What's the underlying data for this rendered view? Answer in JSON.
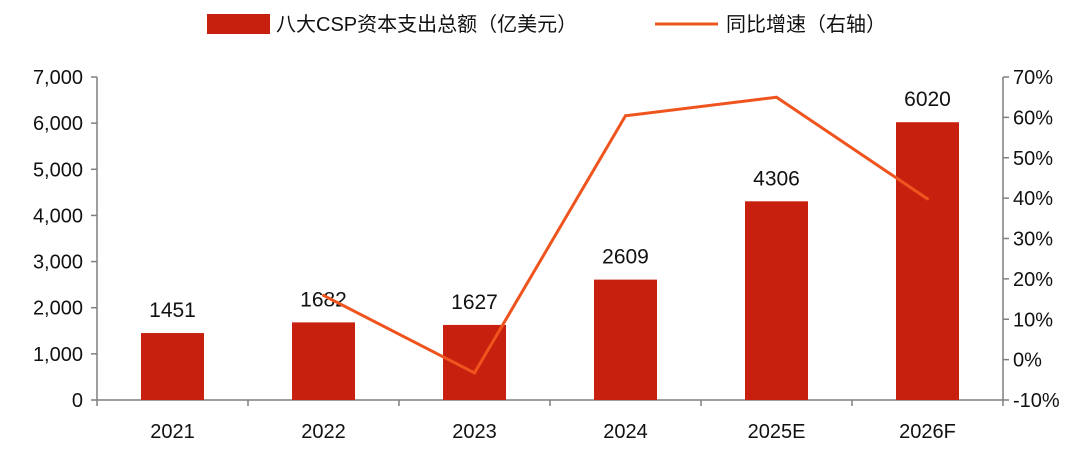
{
  "chart_data": {
    "type": "bar",
    "categories": [
      "2021",
      "2022",
      "2023",
      "2024",
      "2025E",
      "2026F"
    ],
    "series": [
      {
        "name": "八大CSP资本支出总额（亿美元）",
        "type": "bar",
        "axis": "left",
        "color": "#c8200e",
        "values": [
          1451,
          1682,
          1627,
          2609,
          4306,
          6020
        ]
      },
      {
        "name": "同比增速（右轴）",
        "type": "line",
        "axis": "right",
        "color": "#f0541e",
        "values": [
          null,
          15.9,
          -3.3,
          60.4,
          65.0,
          39.8
        ]
      }
    ],
    "data_labels": [
      "1451",
      "1682",
      "1627",
      "2609",
      "4306",
      "6020"
    ],
    "y_left": {
      "ylim": [
        0,
        7000
      ],
      "ticks": [
        0,
        1000,
        2000,
        3000,
        4000,
        5000,
        6000,
        7000
      ],
      "tick_labels": [
        "0",
        "1,000",
        "2,000",
        "3,000",
        "4,000",
        "5,000",
        "6,000",
        "7,000"
      ]
    },
    "y_right": {
      "ylim": [
        -10,
        70
      ],
      "ticks": [
        -10,
        0,
        10,
        20,
        30,
        40,
        50,
        60,
        70
      ],
      "tick_labels": [
        "-10%",
        "0%",
        "10%",
        "20%",
        "30%",
        "40%",
        "50%",
        "60%",
        "70%"
      ]
    },
    "legend_position": "top-center",
    "grid": false
  }
}
